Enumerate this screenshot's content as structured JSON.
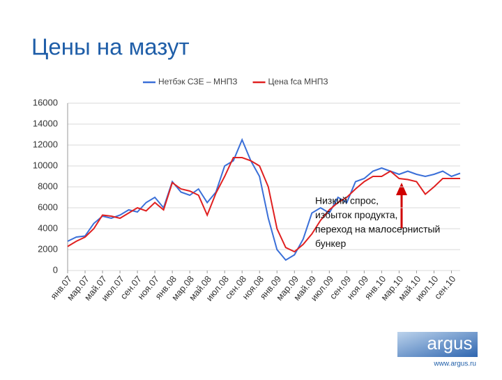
{
  "slide_title": "Цены на мазут",
  "chart_data": {
    "type": "line",
    "categories": [
      "янв.07",
      null,
      "мар.07",
      null,
      "май.07",
      null,
      "июл.07",
      null,
      "сен.07",
      null,
      "ноя.07",
      null,
      "янв.08",
      null,
      "мар.08",
      null,
      "май.08",
      null,
      "июл.08",
      null,
      "сен.08",
      null,
      "ноя.08",
      null,
      "янв.09",
      null,
      "мар.09",
      null,
      "май.09",
      null,
      "июл.09",
      null,
      "сен.09",
      null,
      "ноя.09",
      null,
      "янв.10",
      null,
      "мар.10",
      null,
      "май.10",
      null,
      "июл.10",
      null,
      "сен.10",
      null
    ],
    "series": [
      {
        "name": "Нетбэк СЗЕ – МНПЗ",
        "color": "#3a6fd8",
        "values": [
          2800,
          3200,
          3300,
          4500,
          5200,
          5000,
          5300,
          5800,
          5600,
          6500,
          7000,
          6000,
          8500,
          7500,
          7200,
          7800,
          6500,
          7500,
          10000,
          10500,
          12500,
          10500,
          9000,
          5000,
          2000,
          1000,
          1500,
          3000,
          5500,
          6000,
          5500,
          7000,
          6500,
          8500,
          8800,
          9500,
          9800,
          9500,
          9200,
          9500,
          9200,
          9000,
          9200,
          9500,
          9000,
          9300
        ]
      },
      {
        "name": "Цена fca МНПЗ",
        "color": "#e02020",
        "values": [
          2300,
          2800,
          3200,
          4000,
          5300,
          5200,
          5000,
          5500,
          6000,
          5700,
          6500,
          5800,
          8400,
          7800,
          7600,
          7200,
          5300,
          7400,
          9000,
          10800,
          10800,
          10500,
          10000,
          8000,
          4000,
          2200,
          1800,
          2500,
          3500,
          4800,
          5800,
          6500,
          7000,
          7800,
          8500,
          9000,
          9000,
          9500,
          8800,
          8700,
          8500,
          7300,
          8000,
          8800,
          8800,
          8800
        ]
      }
    ],
    "ylim": [
      0,
      16000
    ],
    "yticks": [
      0,
      2000,
      4000,
      6000,
      8000,
      10000,
      12000,
      14000,
      16000
    ],
    "grid": true,
    "legend": "top",
    "annotation": [
      "Низкий спрос,",
      "избыток продукта,",
      "переход на малосернистый",
      "бункер"
    ]
  },
  "logo": {
    "name": "argus",
    "url": "www.argus.ru"
  }
}
